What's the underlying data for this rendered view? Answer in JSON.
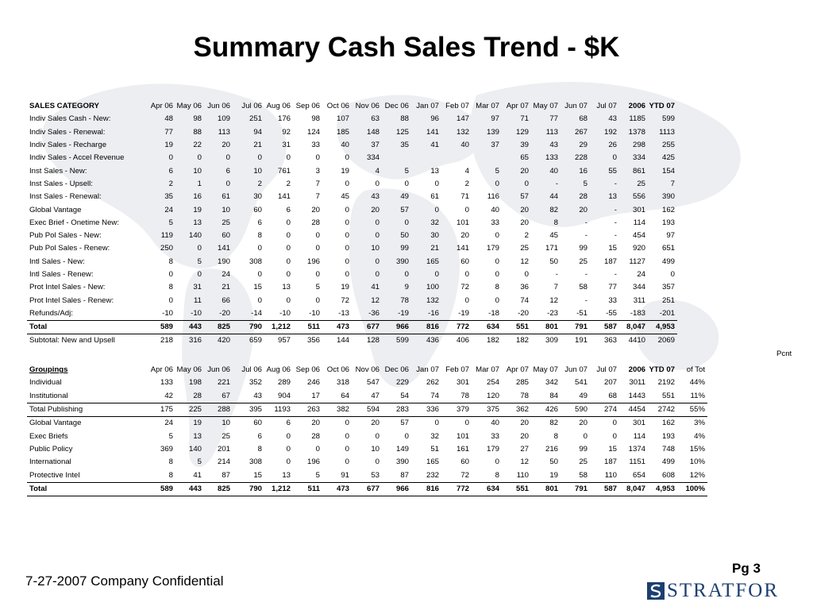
{
  "title": "Summary Cash Sales Trend - $K",
  "months": [
    "Apr 06",
    "May 06",
    "Jun 06",
    "Jul 06",
    "Aug 06",
    "Sep 06",
    "Oct 06",
    "Nov 06",
    "Dec 06",
    "Jan 07",
    "Feb 07",
    "Mar 07",
    "Apr 07",
    "May 07",
    "Jun 07",
    "Jul 07",
    "2006",
    "YTD 07"
  ],
  "sales_table": {
    "header_label": "SALES CATEGORY",
    "rows": [
      {
        "label": "Indiv Sales Cash - New:",
        "values": [
          "48",
          "98",
          "109",
          "251",
          "176",
          "98",
          "107",
          "63",
          "88",
          "96",
          "147",
          "97",
          "71",
          "77",
          "68",
          "43",
          "1185",
          "599"
        ]
      },
      {
        "label": "Indiv Sales - Renewal:",
        "values": [
          "77",
          "88",
          "113",
          "94",
          "92",
          "124",
          "185",
          "148",
          "125",
          "141",
          "132",
          "139",
          "129",
          "113",
          "267",
          "192",
          "1378",
          "1113"
        ]
      },
      {
        "label": "Indiv Sales - Recharge",
        "values": [
          "19",
          "22",
          "20",
          "21",
          "31",
          "33",
          "40",
          "37",
          "35",
          "41",
          "40",
          "37",
          "39",
          "43",
          "29",
          "26",
          "298",
          "255"
        ]
      },
      {
        "label": "Indiv Sales - Accel Revenue",
        "values": [
          "0",
          "0",
          "0",
          "0",
          "0",
          "0",
          "0",
          "334",
          "",
          "",
          "",
          "",
          "65",
          "133",
          "228",
          "0",
          "334",
          "425"
        ]
      },
      {
        "label": "Inst Sales - New:",
        "values": [
          "6",
          "10",
          "6",
          "10",
          "761",
          "3",
          "19",
          "4",
          "5",
          "13",
          "4",
          "5",
          "20",
          "40",
          "16",
          "55",
          "861",
          "154"
        ]
      },
      {
        "label": "Inst Sales - Upsell:",
        "values": [
          "2",
          "1",
          "0",
          "2",
          "2",
          "7",
          "0",
          "0",
          "0",
          "0",
          "2",
          "0",
          "0",
          "-",
          "5",
          "-",
          "25",
          "7"
        ]
      },
      {
        "label": "Inst Sales - Renewal:",
        "values": [
          "35",
          "16",
          "61",
          "30",
          "141",
          "7",
          "45",
          "43",
          "49",
          "61",
          "71",
          "116",
          "57",
          "44",
          "28",
          "13",
          "556",
          "390"
        ]
      },
      {
        "label": "Global Vantage",
        "values": [
          "24",
          "19",
          "10",
          "60",
          "6",
          "20",
          "0",
          "20",
          "57",
          "0",
          "0",
          "40",
          "20",
          "82",
          "20",
          "-",
          "301",
          "162"
        ]
      },
      {
        "label": "Exec Brief - Onetime New:",
        "values": [
          "5",
          "13",
          "25",
          "6",
          "0",
          "28",
          "0",
          "0",
          "0",
          "32",
          "101",
          "33",
          "20",
          "8",
          "-",
          "-",
          "114",
          "193"
        ]
      },
      {
        "label": "Pub Pol Sales - New:",
        "values": [
          "119",
          "140",
          "60",
          "8",
          "0",
          "0",
          "0",
          "0",
          "50",
          "30",
          "20",
          "0",
          "2",
          "45",
          "-",
          "-",
          "454",
          "97"
        ]
      },
      {
        "label": "Pub Pol Sales - Renew:",
        "values": [
          "250",
          "0",
          "141",
          "0",
          "0",
          "0",
          "0",
          "10",
          "99",
          "21",
          "141",
          "179",
          "25",
          "171",
          "99",
          "15",
          "920",
          "651"
        ]
      },
      {
        "label": "Intl Sales - New:",
        "values": [
          "8",
          "5",
          "190",
          "308",
          "0",
          "196",
          "0",
          "0",
          "390",
          "165",
          "60",
          "0",
          "12",
          "50",
          "25",
          "187",
          "1127",
          "499"
        ]
      },
      {
        "label": "Intl Sales - Renew:",
        "values": [
          "0",
          "0",
          "24",
          "0",
          "0",
          "0",
          "0",
          "0",
          "0",
          "0",
          "0",
          "0",
          "0",
          "-",
          "-",
          "-",
          "24",
          "0"
        ]
      },
      {
        "label": "Prot Intel Sales - New:",
        "values": [
          "8",
          "31",
          "21",
          "15",
          "13",
          "5",
          "19",
          "41",
          "9",
          "100",
          "72",
          "8",
          "36",
          "7",
          "58",
          "77",
          "344",
          "357"
        ]
      },
      {
        "label": "Prot Intel Sales - Renew:",
        "values": [
          "0",
          "11",
          "66",
          "0",
          "0",
          "0",
          "72",
          "12",
          "78",
          "132",
          "0",
          "0",
          "74",
          "12",
          "-",
          "33",
          "311",
          "251"
        ]
      },
      {
        "label": "Refunds/Adj:",
        "values": [
          "-10",
          "-10",
          "-20",
          "-14",
          "-10",
          "-10",
          "-13",
          "-36",
          "-19",
          "-16",
          "-19",
          "-18",
          "-20",
          "-23",
          "-51",
          "-55",
          "-183",
          "-201"
        ]
      }
    ],
    "total": {
      "label": "Total",
      "values": [
        "589",
        "443",
        "825",
        "790",
        "1,212",
        "511",
        "473",
        "677",
        "966",
        "816",
        "772",
        "634",
        "551",
        "801",
        "791",
        "587",
        "8,047",
        "4,953"
      ]
    },
    "subtotal": {
      "label": "Subtotal: New and Upsell",
      "values": [
        "218",
        "316",
        "420",
        "659",
        "957",
        "356",
        "144",
        "128",
        "599",
        "436",
        "406",
        "182",
        "182",
        "309",
        "191",
        "363",
        "4410",
        "2069"
      ]
    }
  },
  "groupings_table": {
    "pcnt_label_top": "Pcnt",
    "pcnt_label_bottom": "of Tot",
    "header_label": "Groupings",
    "rows": [
      {
        "label": "Individual",
        "values": [
          "133",
          "198",
          "221",
          "352",
          "289",
          "246",
          "318",
          "547",
          "229",
          "262",
          "301",
          "254",
          "285",
          "342",
          "541",
          "207",
          "3011",
          "2192"
        ],
        "pct": "44%"
      },
      {
        "label": "Institutional",
        "values": [
          "42",
          "28",
          "67",
          "43",
          "904",
          "17",
          "64",
          "47",
          "54",
          "74",
          "78",
          "120",
          "78",
          "84",
          "49",
          "68",
          "1443",
          "551"
        ],
        "pct": "11%"
      },
      {
        "label": "Total Publishing",
        "values": [
          "175",
          "225",
          "288",
          "395",
          "1193",
          "263",
          "382",
          "594",
          "283",
          "336",
          "379",
          "375",
          "362",
          "426",
          "590",
          "274",
          "4454",
          "2742"
        ],
        "pct": "55%"
      },
      {
        "label": "Global Vantage",
        "values": [
          "24",
          "19",
          "10",
          "60",
          "6",
          "20",
          "0",
          "20",
          "57",
          "0",
          "0",
          "40",
          "20",
          "82",
          "20",
          "0",
          "301",
          "162"
        ],
        "pct": "3%"
      },
      {
        "label": "Exec Briefs",
        "values": [
          "5",
          "13",
          "25",
          "6",
          "0",
          "28",
          "0",
          "0",
          "0",
          "32",
          "101",
          "33",
          "20",
          "8",
          "0",
          "0",
          "114",
          "193"
        ],
        "pct": "4%"
      },
      {
        "label": "Public Policy",
        "values": [
          "369",
          "140",
          "201",
          "8",
          "0",
          "0",
          "0",
          "10",
          "149",
          "51",
          "161",
          "179",
          "27",
          "216",
          "99",
          "15",
          "1374",
          "748"
        ],
        "pct": "15%"
      },
      {
        "label": "International",
        "values": [
          "8",
          "5",
          "214",
          "308",
          "0",
          "196",
          "0",
          "0",
          "390",
          "165",
          "60",
          "0",
          "12",
          "50",
          "25",
          "187",
          "1151",
          "499"
        ],
        "pct": "10%"
      },
      {
        "label": "Protective Intel",
        "values": [
          "8",
          "41",
          "87",
          "15",
          "13",
          "5",
          "91",
          "53",
          "87",
          "232",
          "72",
          "8",
          "110",
          "19",
          "58",
          "110",
          "654",
          "608"
        ],
        "pct": "12%"
      }
    ],
    "total": {
      "label": "Total",
      "values": [
        "589",
        "443",
        "825",
        "790",
        "1,212",
        "511",
        "473",
        "677",
        "966",
        "816",
        "772",
        "634",
        "551",
        "801",
        "791",
        "587",
        "8,047",
        "4,953"
      ],
      "pct": "100%"
    }
  },
  "footer": {
    "left": "7-27-2007  Company Confidential",
    "page": "Pg 3",
    "logo_text": "STRATFOR",
    "logo_icon": "stratfor-s-logo-icon"
  },
  "colors": {
    "logo_blue": "#1c3f70",
    "map_gray": "#e9ebee"
  }
}
